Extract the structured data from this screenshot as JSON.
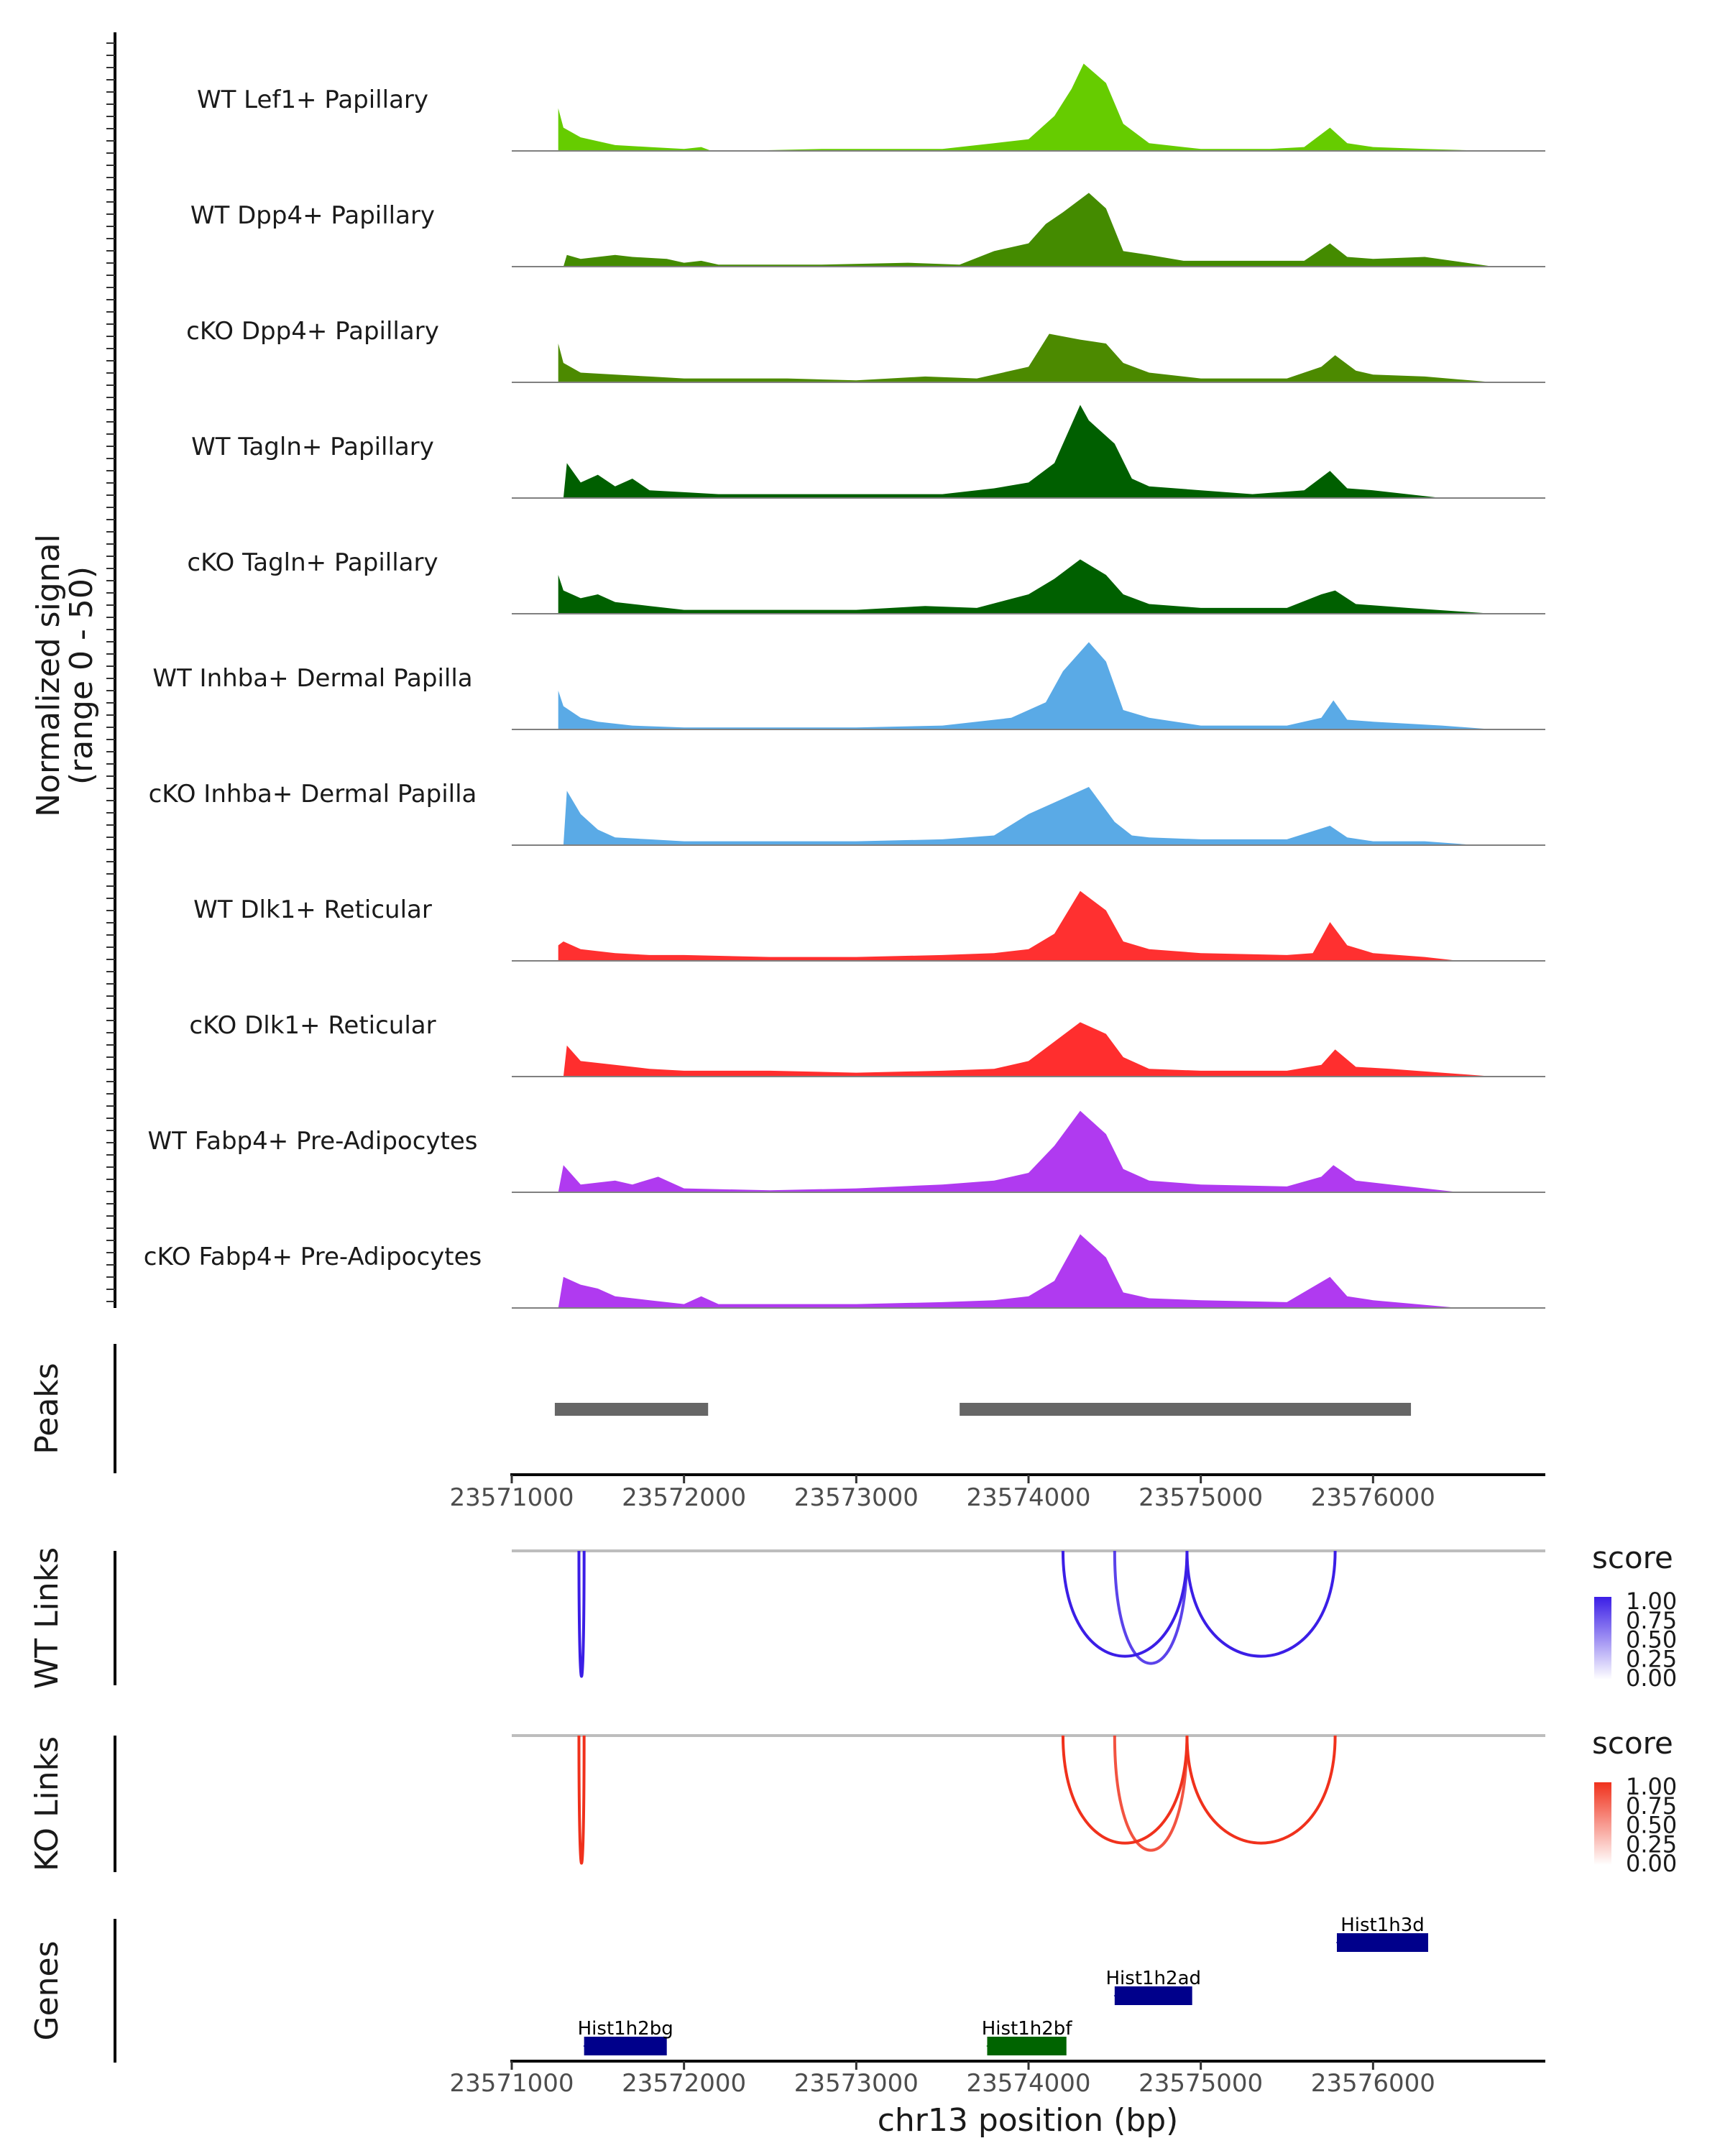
{
  "chart_data": {
    "type": "genome-browser-coverage",
    "region": "chr13",
    "xlabel": "chr13 position (bp)",
    "xlim": [
      23571000,
      23577000
    ],
    "x_ticks": [
      "23571000",
      "23572000",
      "23573000",
      "23574000",
      "23575000",
      "23576000"
    ],
    "x_tick_values": [
      23571000,
      23572000,
      23573000,
      23574000,
      23575000,
      23576000
    ],
    "coverage": {
      "ylabel_line1": "Normalized signal",
      "ylabel_line2": "(range 0 - 50)",
      "ylim": [
        0,
        50
      ],
      "tracks": [
        {
          "name": "WT Lef1+ Papillary",
          "color": "#66cc00",
          "x": [
            23571270,
            23571300,
            23571400,
            23571500,
            23571600,
            23571800,
            23572000,
            23572100,
            23572160,
            23572300,
            23572800,
            23573500,
            23573800,
            23574000,
            23574150,
            23574250,
            23574320,
            23574450,
            23574550,
            23574700,
            23575000,
            23575400,
            23575600,
            23575750,
            23575850,
            23576000,
            23576300,
            23576700
          ],
          "y": [
            22,
            12,
            7,
            5,
            3,
            2,
            1,
            2,
            0,
            0,
            1,
            1,
            4,
            6,
            18,
            32,
            45,
            35,
            14,
            4,
            1,
            1,
            2,
            12,
            4,
            2,
            1,
            0
          ]
        },
        {
          "name": "WT Dpp4+ Papillary",
          "color": "#448b00",
          "x": [
            23571300,
            23571320,
            23571400,
            23571600,
            23571700,
            23571900,
            23572000,
            23572100,
            23572200,
            23572800,
            23573300,
            23573600,
            23573800,
            23574000,
            23574100,
            23574200,
            23574350,
            23574450,
            23574550,
            23574700,
            23574900,
            23575200,
            23575600,
            23575750,
            23575850,
            23576000,
            23576300,
            23576700
          ],
          "y": [
            0,
            6,
            4,
            6,
            5,
            4,
            2,
            3,
            1,
            1,
            2,
            1,
            8,
            12,
            22,
            28,
            38,
            30,
            8,
            6,
            3,
            3,
            3,
            12,
            5,
            4,
            5,
            0
          ]
        },
        {
          "name": "cKO Dpp4+ Papillary",
          "color": "#4c8a00",
          "x": [
            23571270,
            23571300,
            23571400,
            23571600,
            23571800,
            23572000,
            23572200,
            23572600,
            23573000,
            23573400,
            23573700,
            23574000,
            23574120,
            23574300,
            23574450,
            23574550,
            23574700,
            23575000,
            23575500,
            23575700,
            23575780,
            23575900,
            23576000,
            23576300,
            23576700
          ],
          "y": [
            20,
            10,
            5,
            4,
            3,
            2,
            2,
            2,
            1,
            3,
            2,
            8,
            25,
            22,
            20,
            10,
            5,
            2,
            2,
            8,
            14,
            6,
            4,
            3,
            0
          ]
        },
        {
          "name": "WT Tagln+ Papillary",
          "color": "#005f00",
          "x": [
            23571300,
            23571320,
            23571400,
            23571500,
            23571600,
            23571700,
            23571800,
            23572000,
            23572200,
            23572400,
            23573000,
            23573500,
            23573800,
            23574000,
            23574150,
            23574300,
            23574350,
            23574500,
            23574600,
            23574700,
            23575000,
            23575300,
            23575600,
            23575750,
            23575850,
            23576000,
            23576400
          ],
          "y": [
            0,
            18,
            8,
            12,
            6,
            10,
            4,
            3,
            2,
            2,
            2,
            2,
            5,
            8,
            18,
            48,
            40,
            28,
            10,
            6,
            4,
            2,
            4,
            14,
            5,
            4,
            0
          ]
        },
        {
          "name": "cKO Tagln+ Papillary",
          "color": "#006000",
          "x": [
            23571270,
            23571300,
            23571400,
            23571500,
            23571600,
            23571800,
            23572000,
            23572400,
            23573000,
            23573400,
            23573700,
            23574000,
            23574150,
            23574300,
            23574450,
            23574550,
            23574700,
            23575000,
            23575500,
            23575700,
            23575780,
            23575900,
            23576200,
            23576700
          ],
          "y": [
            20,
            12,
            8,
            10,
            6,
            4,
            2,
            2,
            2,
            4,
            3,
            10,
            18,
            28,
            20,
            10,
            5,
            3,
            3,
            10,
            12,
            5,
            3,
            0
          ]
        },
        {
          "name": "WT Inhba+ Dermal Papilla",
          "color": "#5aaae6",
          "x": [
            23571270,
            23571300,
            23571400,
            23571500,
            23571700,
            23572000,
            23572500,
            23573000,
            23573500,
            23573900,
            23574100,
            23574200,
            23574350,
            23574450,
            23574550,
            23574700,
            23575000,
            23575500,
            23575700,
            23575770,
            23575850,
            23576000,
            23576400,
            23576700
          ],
          "y": [
            20,
            12,
            6,
            4,
            2,
            1,
            1,
            1,
            2,
            6,
            14,
            30,
            45,
            35,
            10,
            6,
            2,
            2,
            6,
            15,
            5,
            4,
            2,
            0
          ]
        },
        {
          "name": "cKO Inhba+ Dermal Papilla",
          "color": "#5aaae6",
          "x": [
            23571300,
            23571320,
            23571400,
            23571500,
            23571600,
            23571800,
            23572000,
            23572600,
            23573000,
            23573500,
            23573800,
            23574000,
            23574150,
            23574350,
            23574500,
            23574600,
            23574700,
            23575000,
            23575500,
            23575750,
            23575850,
            23576000,
            23576300,
            23576600
          ],
          "y": [
            0,
            28,
            16,
            8,
            4,
            3,
            2,
            2,
            2,
            3,
            5,
            16,
            22,
            30,
            12,
            5,
            4,
            3,
            3,
            10,
            4,
            2,
            2,
            0
          ]
        },
        {
          "name": "WT Dlk1+ Reticular",
          "color": "#ff3030",
          "x": [
            23571270,
            23571300,
            23571400,
            23571600,
            23571800,
            23572000,
            23572500,
            23573000,
            23573500,
            23573800,
            23574000,
            23574150,
            23574300,
            23574450,
            23574550,
            23574700,
            23575000,
            23575500,
            23575650,
            23575750,
            23575850,
            23576000,
            23576300,
            23576500
          ],
          "y": [
            8,
            10,
            6,
            4,
            3,
            3,
            2,
            2,
            3,
            4,
            6,
            14,
            36,
            26,
            10,
            6,
            4,
            3,
            4,
            20,
            8,
            4,
            2,
            0
          ]
        },
        {
          "name": "cKO Dlk1+ Reticular",
          "color": "#ff2e2e",
          "x": [
            23571300,
            23571320,
            23571400,
            23571600,
            23571800,
            23572000,
            23572500,
            23573000,
            23573500,
            23573800,
            23574000,
            23574150,
            23574300,
            23574450,
            23574550,
            23574700,
            23575000,
            23575500,
            23575700,
            23575780,
            23575900,
            23576100,
            23576400,
            23576700
          ],
          "y": [
            0,
            16,
            8,
            6,
            4,
            3,
            3,
            2,
            3,
            4,
            8,
            18,
            28,
            22,
            10,
            4,
            3,
            3,
            6,
            14,
            5,
            4,
            2,
            0
          ]
        },
        {
          "name": "WT Fabp4+ Pre-Adipocytes",
          "color": "#b03af0",
          "x": [
            23571270,
            23571300,
            23571400,
            23571600,
            23571700,
            23571850,
            23572000,
            23572500,
            23573000,
            23573500,
            23573800,
            23574000,
            23574150,
            23574300,
            23574450,
            23574550,
            23574700,
            23575000,
            23575500,
            23575700,
            23575770,
            23575900,
            23576100,
            23576500
          ],
          "y": [
            0,
            14,
            4,
            6,
            4,
            8,
            2,
            1,
            2,
            4,
            6,
            10,
            24,
            42,
            30,
            12,
            6,
            4,
            3,
            8,
            14,
            6,
            4,
            0
          ]
        },
        {
          "name": "cKO Fabp4+ Pre-Adipocytes",
          "color": "#b03af0",
          "x": [
            23571270,
            23571300,
            23571400,
            23571500,
            23571600,
            23571800,
            23572000,
            23572100,
            23572200,
            23573000,
            23573500,
            23573800,
            23574000,
            23574150,
            23574300,
            23574450,
            23574550,
            23574700,
            23575000,
            23575500,
            23575750,
            23575850,
            23576000,
            23576500
          ],
          "y": [
            0,
            16,
            12,
            10,
            6,
            4,
            2,
            6,
            2,
            2,
            3,
            4,
            6,
            14,
            38,
            26,
            8,
            5,
            4,
            3,
            16,
            6,
            4,
            0
          ]
        }
      ]
    },
    "peaks": {
      "label": "Peaks",
      "color": "#666666",
      "ranges": [
        [
          23571250,
          23572140
        ],
        [
          23573600,
          23576220
        ]
      ]
    },
    "links": [
      {
        "label": "WT Links",
        "color_high": "#3b1ee6",
        "legend_title": "score",
        "legend_values": [
          "1.00",
          "0.75",
          "0.50",
          "0.25",
          "0.00"
        ],
        "arcs": [
          {
            "start": 23571390,
            "end": 23571420,
            "score": 1.0
          },
          {
            "start": 23574200,
            "end": 23574920,
            "score": 1.0
          },
          {
            "start": 23574500,
            "end": 23574920,
            "score": 0.7
          },
          {
            "start": 23574920,
            "end": 23575780,
            "score": 1.0
          }
        ]
      },
      {
        "label": "KO Links",
        "color_high": "#f0311c",
        "legend_title": "score",
        "legend_values": [
          "1.00",
          "0.75",
          "0.50",
          "0.25",
          "0.00"
        ],
        "arcs": [
          {
            "start": 23571390,
            "end": 23571420,
            "score": 1.0
          },
          {
            "start": 23574200,
            "end": 23574920,
            "score": 1.0
          },
          {
            "start": 23574500,
            "end": 23574920,
            "score": 0.7
          },
          {
            "start": 23574920,
            "end": 23575780,
            "score": 1.0
          }
        ]
      }
    ],
    "genes": {
      "label": "Genes",
      "items": [
        {
          "name": "Hist1h2bg",
          "start": 23571420,
          "end": 23571900,
          "row": 1,
          "color": "#00008b"
        },
        {
          "name": "Hist1h2bf",
          "start": 23573760,
          "end": 23574220,
          "row": 1,
          "color": "#006400"
        },
        {
          "name": "Hist1h2ad",
          "start": 23574500,
          "end": 23574950,
          "row": 2,
          "color": "#00008b"
        },
        {
          "name": "Hist1h3d",
          "start": 23575790,
          "end": 23576320,
          "row": 3,
          "color": "#00008b"
        }
      ]
    }
  }
}
